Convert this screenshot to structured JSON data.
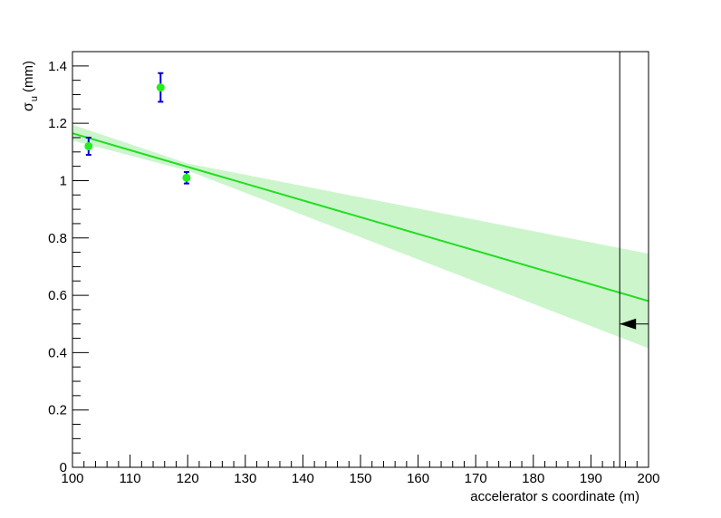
{
  "chart_data": {
    "type": "scatter",
    "xlabel": "accelerator s coordinate (m)",
    "ylabel": {
      "symbol": "σ",
      "subscript": "u",
      "unit": "(mm)"
    },
    "xlim": [
      100,
      200
    ],
    "ylim": [
      0,
      1.45
    ],
    "x_ticks": [
      "100",
      "110",
      "120",
      "130",
      "140",
      "150",
      "160",
      "170",
      "180",
      "190",
      "200"
    ],
    "y_ticks": [
      "0",
      "0.2",
      "0.4",
      "0.6",
      "0.8",
      "1",
      "1.2",
      "1.4"
    ],
    "grid": false,
    "series": [
      {
        "kind": "points_with_errors",
        "marker_color": "#22ee22",
        "error_color": "#0000cc",
        "points": [
          {
            "x": 102.8,
            "y": 1.12,
            "yerr": 0.03
          },
          {
            "x": 115.3,
            "y": 1.325,
            "yerr": 0.05
          },
          {
            "x": 119.8,
            "y": 1.01,
            "yerr": 0.02
          }
        ]
      },
      {
        "kind": "fit_line",
        "color": "#22dd22",
        "x": [
          100,
          200
        ],
        "y": [
          1.165,
          0.58
        ]
      },
      {
        "kind": "confidence_band",
        "color": "#ccf5cc",
        "x": [
          100,
          120,
          200
        ],
        "lower": [
          1.14,
          1.035,
          0.415
        ],
        "upper": [
          1.195,
          1.06,
          0.745
        ]
      }
    ],
    "annotations": [
      {
        "kind": "vertical_line",
        "x": 195,
        "color": "#000000"
      },
      {
        "kind": "arrow_marker",
        "x": 195,
        "y": 0.5,
        "direction": "left",
        "color": "#000000"
      }
    ]
  }
}
